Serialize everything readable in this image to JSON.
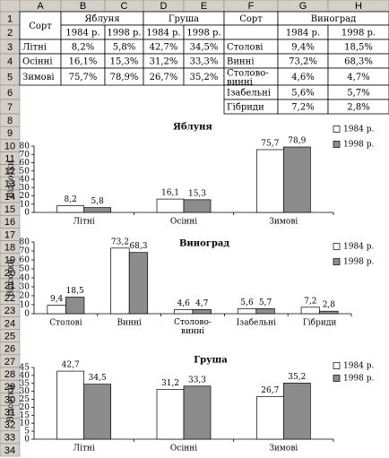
{
  "columns": [
    "A",
    "B",
    "C",
    "D",
    "E",
    "F",
    "G",
    "H"
  ],
  "rows": [
    1,
    2,
    3,
    4,
    5,
    6,
    7,
    8,
    9,
    10,
    11,
    12,
    13,
    14,
    15,
    16,
    17,
    18,
    19,
    20,
    21,
    22,
    23,
    24,
    25,
    26,
    27,
    28,
    29,
    30,
    31,
    32,
    33,
    34
  ],
  "table": {
    "rows": [
      [
        "Сорт",
        "Яблуня",
        null,
        "Груша",
        null,
        "Сорт",
        "Виноград",
        null
      ],
      [
        null,
        "1984 р.",
        "1998 р.",
        "1984 р.",
        "1998 р.",
        null,
        "1984 р.",
        "1998 р."
      ],
      [
        "Літні",
        "8,2%",
        "5,8%",
        "42,7%",
        "34,5%",
        "Столові",
        "9,4%",
        "18,5%"
      ],
      [
        "Осінні",
        "16,1%",
        "15,3%",
        "31,2%",
        "33,3%",
        "Винні",
        "73,2%",
        "68,3%"
      ],
      [
        "Зимові",
        "75,7%",
        "78,9%",
        "26,7%",
        "35,2%",
        "Столово-винні",
        "4,6%",
        "4,7%"
      ],
      [
        null,
        null,
        null,
        null,
        null,
        "Ізабельні",
        "5,6%",
        "5,7%"
      ],
      [
        null,
        null,
        null,
        null,
        null,
        "Гібриди",
        "7,2%",
        "2,8%"
      ]
    ]
  },
  "chart_data": [
    {
      "type": "bar",
      "title": "Яблуня",
      "y_label": "Відсотки",
      "categories": [
        "Літні",
        "Осінні",
        "Зимові"
      ],
      "series": [
        {
          "name": "1984 р.",
          "color": "#ffffff",
          "values": [
            8.2,
            16.1,
            75.7
          ],
          "value_labels": [
            "8,2",
            "16,1",
            "75,7"
          ]
        },
        {
          "name": "1998 р.",
          "color": "#8c8c8c",
          "values": [
            5.8,
            15.3,
            78.9
          ],
          "value_labels": [
            "5,8",
            "15,3",
            "78,9"
          ]
        }
      ],
      "ylim": [
        0,
        80
      ],
      "yticks": [
        0,
        10,
        20,
        30,
        40,
        50,
        60,
        70,
        80
      ],
      "legend": "top-right"
    },
    {
      "type": "bar",
      "title": "Виноград",
      "y_label": "Відсотки",
      "categories": [
        "Столові",
        "Винні",
        "Столово-винні",
        "Ізабельні",
        "Гібриди"
      ],
      "series": [
        {
          "name": "1984 р.",
          "color": "#ffffff",
          "values": [
            9.4,
            73.2,
            4.6,
            5.6,
            7.2
          ],
          "value_labels": [
            "9,4",
            "73,2",
            "4,6",
            "5,6",
            "7,2"
          ]
        },
        {
          "name": "1998 р.",
          "color": "#8c8c8c",
          "values": [
            18.5,
            68.3,
            4.7,
            5.7,
            2.8
          ],
          "value_labels": [
            "18,5",
            "68,3",
            "4,7",
            "5,7",
            "2,8"
          ]
        }
      ],
      "ylim": [
        0,
        80
      ],
      "yticks": [
        0,
        10,
        20,
        30,
        40,
        50,
        60,
        70,
        80
      ],
      "legend": "top-right"
    },
    {
      "type": "bar",
      "title": "Груша",
      "y_label": "Відсотки",
      "categories": [
        "Літні",
        "Осінні",
        "Зимові"
      ],
      "series": [
        {
          "name": "1984 р.",
          "color": "#ffffff",
          "values": [
            42.7,
            31.2,
            26.7
          ],
          "value_labels": [
            "42,7",
            "31,2",
            "26,7"
          ]
        },
        {
          "name": "1998 р.",
          "color": "#8c8c8c",
          "values": [
            34.5,
            33.3,
            35.2
          ],
          "value_labels": [
            "34,5",
            "33,3",
            "35,2"
          ]
        }
      ],
      "ylim": [
        0,
        45
      ],
      "yticks": [
        0,
        5,
        10,
        15,
        20,
        25,
        30,
        35,
        40,
        45
      ],
      "legend": "top-right"
    }
  ]
}
